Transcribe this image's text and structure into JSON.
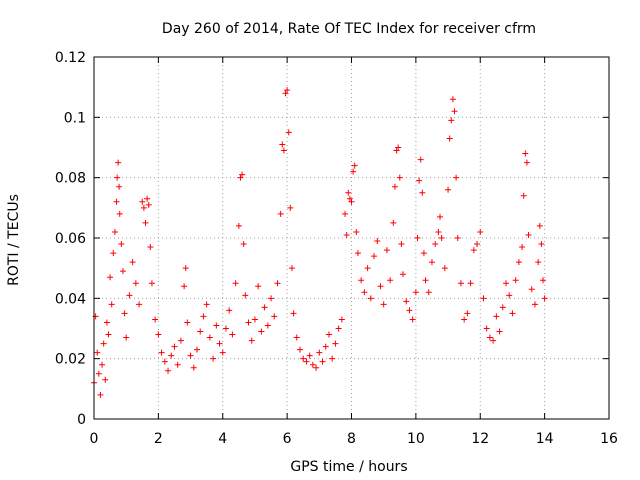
{
  "chart_data": {
    "type": "scatter",
    "title": "Day 260 of 2014, Rate Of TEC Index for receiver cfrm",
    "xlabel": "GPS time / hours",
    "ylabel": "ROTI / TECUs",
    "xlim": [
      0,
      16
    ],
    "ylim": [
      0,
      0.12
    ],
    "xticks": [
      "0",
      "2",
      "4",
      "6",
      "8",
      "10",
      "12",
      "14",
      "16"
    ],
    "yticks": [
      "0",
      "0.02",
      "0.04",
      "0.06",
      "0.08",
      "0.1",
      "0.12"
    ],
    "grid": true,
    "marker": "+",
    "color": "#ff0000",
    "series": [
      {
        "name": "ROTI",
        "points": [
          [
            0.0,
            0.012
          ],
          [
            0.05,
            0.034
          ],
          [
            0.1,
            0.022
          ],
          [
            0.15,
            0.015
          ],
          [
            0.2,
            0.008
          ],
          [
            0.25,
            0.018
          ],
          [
            0.3,
            0.025
          ],
          [
            0.35,
            0.013
          ],
          [
            0.4,
            0.032
          ],
          [
            0.45,
            0.028
          ],
          [
            0.5,
            0.047
          ],
          [
            0.55,
            0.038
          ],
          [
            0.6,
            0.055
          ],
          [
            0.65,
            0.062
          ],
          [
            0.7,
            0.072
          ],
          [
            0.72,
            0.08
          ],
          [
            0.75,
            0.085
          ],
          [
            0.78,
            0.077
          ],
          [
            0.8,
            0.068
          ],
          [
            0.85,
            0.058
          ],
          [
            0.9,
            0.049
          ],
          [
            0.95,
            0.035
          ],
          [
            1.0,
            0.027
          ],
          [
            1.1,
            0.041
          ],
          [
            1.2,
            0.052
          ],
          [
            1.3,
            0.045
          ],
          [
            1.4,
            0.038
          ],
          [
            1.5,
            0.072
          ],
          [
            1.55,
            0.07
          ],
          [
            1.6,
            0.065
          ],
          [
            1.65,
            0.073
          ],
          [
            1.7,
            0.071
          ],
          [
            1.75,
            0.057
          ],
          [
            1.8,
            0.045
          ],
          [
            1.9,
            0.033
          ],
          [
            2.0,
            0.028
          ],
          [
            2.1,
            0.022
          ],
          [
            2.2,
            0.019
          ],
          [
            2.3,
            0.016
          ],
          [
            2.4,
            0.021
          ],
          [
            2.5,
            0.024
          ],
          [
            2.6,
            0.018
          ],
          [
            2.7,
            0.026
          ],
          [
            2.8,
            0.044
          ],
          [
            2.85,
            0.05
          ],
          [
            2.9,
            0.032
          ],
          [
            3.0,
            0.021
          ],
          [
            3.1,
            0.017
          ],
          [
            3.2,
            0.023
          ],
          [
            3.3,
            0.029
          ],
          [
            3.4,
            0.034
          ],
          [
            3.5,
            0.038
          ],
          [
            3.6,
            0.027
          ],
          [
            3.7,
            0.02
          ],
          [
            3.8,
            0.031
          ],
          [
            3.9,
            0.025
          ],
          [
            4.0,
            0.022
          ],
          [
            4.1,
            0.03
          ],
          [
            4.2,
            0.036
          ],
          [
            4.3,
            0.028
          ],
          [
            4.4,
            0.045
          ],
          [
            4.5,
            0.064
          ],
          [
            4.55,
            0.08
          ],
          [
            4.6,
            0.081
          ],
          [
            4.65,
            0.058
          ],
          [
            4.7,
            0.041
          ],
          [
            4.8,
            0.032
          ],
          [
            4.9,
            0.026
          ],
          [
            5.0,
            0.033
          ],
          [
            5.1,
            0.044
          ],
          [
            5.2,
            0.029
          ],
          [
            5.3,
            0.037
          ],
          [
            5.4,
            0.031
          ],
          [
            5.5,
            0.04
          ],
          [
            5.6,
            0.034
          ],
          [
            5.7,
            0.045
          ],
          [
            5.8,
            0.068
          ],
          [
            5.85,
            0.091
          ],
          [
            5.9,
            0.089
          ],
          [
            5.95,
            0.108
          ],
          [
            6.0,
            0.109
          ],
          [
            6.05,
            0.095
          ],
          [
            6.1,
            0.07
          ],
          [
            6.15,
            0.05
          ],
          [
            6.2,
            0.035
          ],
          [
            6.3,
            0.027
          ],
          [
            6.4,
            0.023
          ],
          [
            6.5,
            0.02
          ],
          [
            6.6,
            0.019
          ],
          [
            6.7,
            0.021
          ],
          [
            6.8,
            0.018
          ],
          [
            6.9,
            0.017
          ],
          [
            7.0,
            0.022
          ],
          [
            7.1,
            0.019
          ],
          [
            7.2,
            0.024
          ],
          [
            7.3,
            0.028
          ],
          [
            7.4,
            0.02
          ],
          [
            7.5,
            0.025
          ],
          [
            7.6,
            0.03
          ],
          [
            7.7,
            0.033
          ],
          [
            7.8,
            0.068
          ],
          [
            7.85,
            0.061
          ],
          [
            7.9,
            0.075
          ],
          [
            7.95,
            0.073
          ],
          [
            8.0,
            0.072
          ],
          [
            8.05,
            0.082
          ],
          [
            8.1,
            0.084
          ],
          [
            8.15,
            0.062
          ],
          [
            8.2,
            0.055
          ],
          [
            8.3,
            0.046
          ],
          [
            8.4,
            0.042
          ],
          [
            8.5,
            0.05
          ],
          [
            8.6,
            0.04
          ],
          [
            8.7,
            0.054
          ],
          [
            8.8,
            0.059
          ],
          [
            8.9,
            0.044
          ],
          [
            9.0,
            0.038
          ],
          [
            9.1,
            0.056
          ],
          [
            9.2,
            0.046
          ],
          [
            9.3,
            0.065
          ],
          [
            9.35,
            0.077
          ],
          [
            9.4,
            0.089
          ],
          [
            9.45,
            0.09
          ],
          [
            9.5,
            0.08
          ],
          [
            9.55,
            0.058
          ],
          [
            9.6,
            0.048
          ],
          [
            9.7,
            0.039
          ],
          [
            9.8,
            0.036
          ],
          [
            9.9,
            0.033
          ],
          [
            10.0,
            0.042
          ],
          [
            10.05,
            0.06
          ],
          [
            10.1,
            0.079
          ],
          [
            10.15,
            0.086
          ],
          [
            10.2,
            0.075
          ],
          [
            10.25,
            0.055
          ],
          [
            10.3,
            0.046
          ],
          [
            10.4,
            0.042
          ],
          [
            10.5,
            0.052
          ],
          [
            10.6,
            0.058
          ],
          [
            10.7,
            0.062
          ],
          [
            10.75,
            0.067
          ],
          [
            10.8,
            0.06
          ],
          [
            10.9,
            0.05
          ],
          [
            11.0,
            0.076
          ],
          [
            11.05,
            0.093
          ],
          [
            11.1,
            0.099
          ],
          [
            11.15,
            0.106
          ],
          [
            11.2,
            0.102
          ],
          [
            11.25,
            0.08
          ],
          [
            11.3,
            0.06
          ],
          [
            11.4,
            0.045
          ],
          [
            11.5,
            0.033
          ],
          [
            11.6,
            0.035
          ],
          [
            11.7,
            0.045
          ],
          [
            11.8,
            0.056
          ],
          [
            11.9,
            0.058
          ],
          [
            12.0,
            0.062
          ],
          [
            12.1,
            0.04
          ],
          [
            12.2,
            0.03
          ],
          [
            12.3,
            0.027
          ],
          [
            12.4,
            0.026
          ],
          [
            12.5,
            0.034
          ],
          [
            12.6,
            0.029
          ],
          [
            12.7,
            0.037
          ],
          [
            12.8,
            0.045
          ],
          [
            12.9,
            0.041
          ],
          [
            13.0,
            0.035
          ],
          [
            13.1,
            0.046
          ],
          [
            13.2,
            0.052
          ],
          [
            13.3,
            0.057
          ],
          [
            13.35,
            0.074
          ],
          [
            13.4,
            0.088
          ],
          [
            13.45,
            0.085
          ],
          [
            13.5,
            0.061
          ],
          [
            13.6,
            0.043
          ],
          [
            13.7,
            0.038
          ],
          [
            13.8,
            0.052
          ],
          [
            13.85,
            0.064
          ],
          [
            13.9,
            0.058
          ],
          [
            13.95,
            0.046
          ],
          [
            14.0,
            0.04
          ]
        ]
      }
    ]
  }
}
